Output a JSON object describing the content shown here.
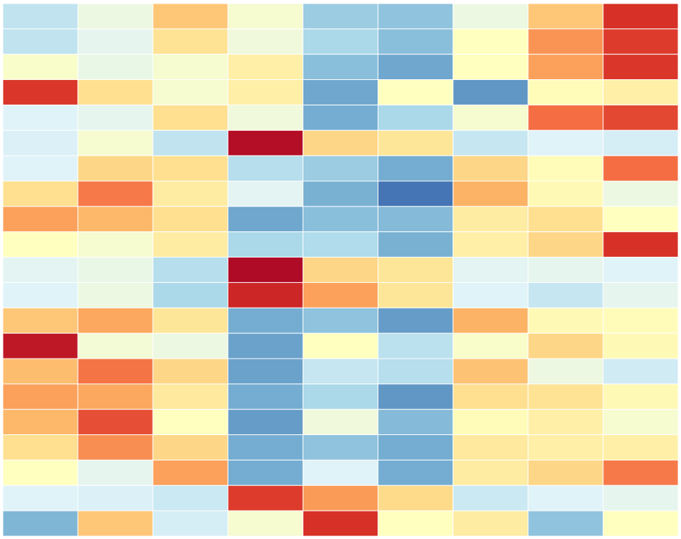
{
  "chart_data": {
    "type": "heatmap",
    "rows": 21,
    "cols": 9,
    "colormap": "RdYlBu_r",
    "vmin": 0,
    "vmax": 1,
    "grid": true,
    "title": "",
    "xlabel": "",
    "ylabel": "",
    "legend": "none",
    "values": [
      [
        0.34,
        0.44,
        0.65,
        0.47,
        0.27,
        0.25,
        0.44,
        0.65,
        0.9
      ],
      [
        0.34,
        0.42,
        0.59,
        0.45,
        0.3,
        0.24,
        0.5,
        0.74,
        0.88
      ],
      [
        0.48,
        0.43,
        0.47,
        0.55,
        0.24,
        0.19,
        0.5,
        0.72,
        0.89
      ],
      [
        0.89,
        0.6,
        0.47,
        0.55,
        0.19,
        0.5,
        0.16,
        0.51,
        0.55
      ],
      [
        0.4,
        0.42,
        0.6,
        0.45,
        0.2,
        0.3,
        0.47,
        0.8,
        0.86
      ],
      [
        0.39,
        0.47,
        0.34,
        0.97,
        0.62,
        0.58,
        0.35,
        0.4,
        0.38
      ],
      [
        0.4,
        0.62,
        0.6,
        0.32,
        0.27,
        0.2,
        0.62,
        0.51,
        0.8
      ],
      [
        0.6,
        0.78,
        0.56,
        0.41,
        0.21,
        0.1,
        0.69,
        0.52,
        0.44
      ],
      [
        0.72,
        0.68,
        0.6,
        0.19,
        0.24,
        0.23,
        0.56,
        0.6,
        0.5
      ],
      [
        0.5,
        0.47,
        0.56,
        0.3,
        0.31,
        0.21,
        0.55,
        0.62,
        0.9
      ],
      [
        0.41,
        0.43,
        0.32,
        0.98,
        0.62,
        0.58,
        0.41,
        0.42,
        0.4
      ],
      [
        0.4,
        0.44,
        0.3,
        0.92,
        0.72,
        0.58,
        0.4,
        0.35,
        0.42
      ],
      [
        0.65,
        0.71,
        0.58,
        0.2,
        0.25,
        0.17,
        0.69,
        0.52,
        0.51
      ],
      [
        0.95,
        0.46,
        0.44,
        0.18,
        0.5,
        0.33,
        0.48,
        0.62,
        0.52
      ],
      [
        0.67,
        0.79,
        0.62,
        0.18,
        0.35,
        0.32,
        0.66,
        0.44,
        0.37
      ],
      [
        0.72,
        0.71,
        0.57,
        0.2,
        0.3,
        0.16,
        0.6,
        0.59,
        0.52
      ],
      [
        0.68,
        0.85,
        0.5,
        0.17,
        0.45,
        0.23,
        0.51,
        0.55,
        0.47
      ],
      [
        0.6,
        0.75,
        0.62,
        0.2,
        0.25,
        0.2,
        0.57,
        0.55,
        0.55
      ],
      [
        0.5,
        0.42,
        0.72,
        0.2,
        0.4,
        0.2,
        0.56,
        0.62,
        0.78
      ],
      [
        0.4,
        0.39,
        0.36,
        0.88,
        0.73,
        0.61,
        0.36,
        0.4,
        0.42
      ],
      [
        0.22,
        0.65,
        0.38,
        0.47,
        0.9,
        0.5,
        0.56,
        0.25,
        0.5
      ]
    ]
  }
}
